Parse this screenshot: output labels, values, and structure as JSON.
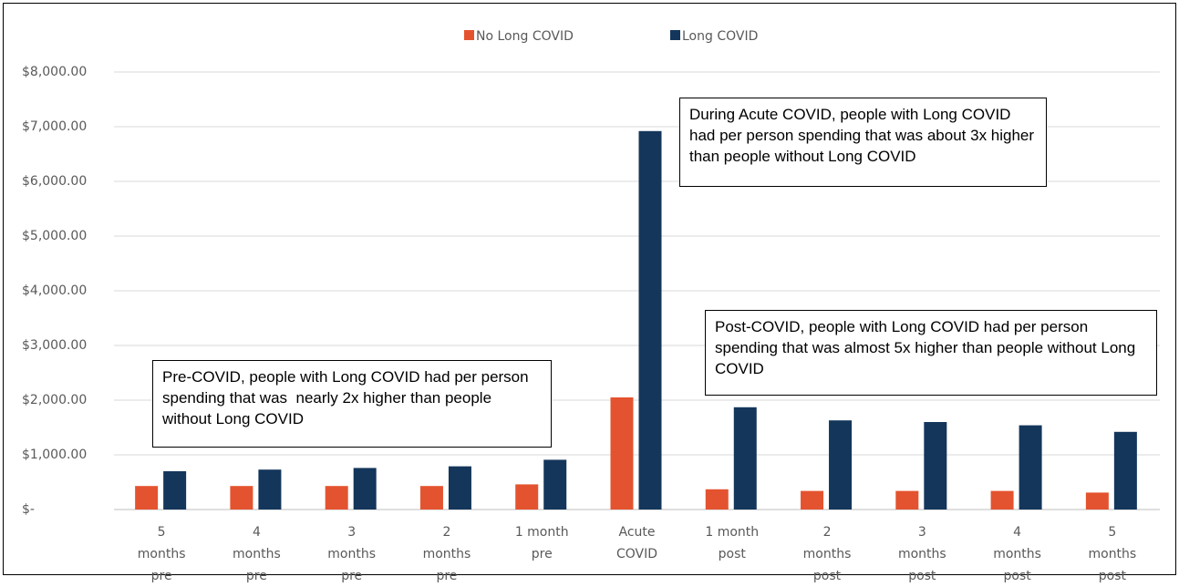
{
  "chart_data": {
    "type": "bar",
    "categories": [
      "5 months pre",
      "4 months pre",
      "3 months pre",
      "2 months pre",
      "1 month pre",
      "Acute COVID",
      "1 month post",
      "2 months post",
      "3 months post",
      "4 months post",
      "5 months post"
    ],
    "series": [
      {
        "name": "No Long COVID",
        "color": "#e4532f",
        "values": [
          430,
          430,
          430,
          430,
          460,
          2050,
          370,
          340,
          340,
          340,
          310
        ]
      },
      {
        "name": "Long COVID",
        "color": "#14365b",
        "values": [
          700,
          730,
          760,
          790,
          910,
          6920,
          1870,
          1630,
          1600,
          1540,
          1420
        ]
      }
    ],
    "ylim": [
      0,
      8000
    ],
    "yticks": [
      {
        "value": 0,
        "label": "$-"
      },
      {
        "value": 1000,
        "label": "$1,000.00"
      },
      {
        "value": 2000,
        "label": "$2,000.00"
      },
      {
        "value": 3000,
        "label": "$3,000.00"
      },
      {
        "value": 4000,
        "label": "$4,000.00"
      },
      {
        "value": 5000,
        "label": "$5,000.00"
      },
      {
        "value": 6000,
        "label": "$6,000.00"
      },
      {
        "value": 7000,
        "label": "$7,000.00"
      },
      {
        "value": 8000,
        "label": "$8,000.00"
      }
    ],
    "grid": true,
    "legend": "top",
    "annotations": [
      "Pre-COVID, people with Long COVID had per person spending that was  nearly 2x higher than people without Long COVID",
      "During Acute COVID, people with Long COVID had per person spending that was about 3x higher than people without Long COVID",
      "Post-COVID, people with Long COVID had per person spending that was almost 5x higher than people without Long COVID"
    ]
  }
}
